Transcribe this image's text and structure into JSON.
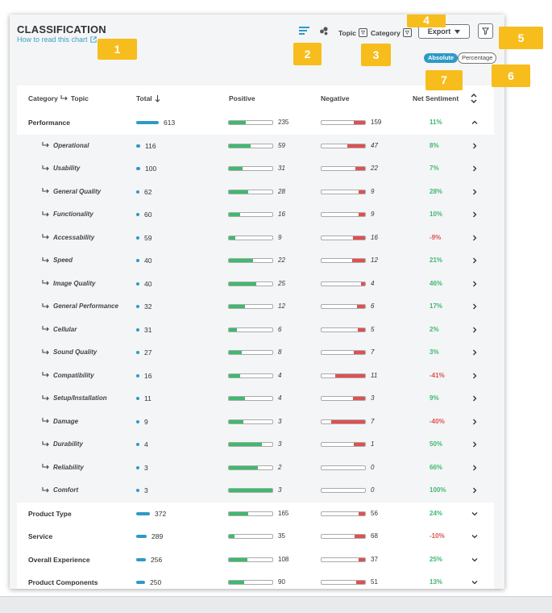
{
  "header": {
    "title": "CLASSIFICATION",
    "how_to": "How to read this chart",
    "topic_label": "Topic",
    "category_label": "Category",
    "export_label": "Export",
    "absolute_label": "Absolute",
    "percentage_label": "Percentage"
  },
  "table": {
    "columns": {
      "category": "Category",
      "topic": "Topic",
      "total": "Total",
      "positive": "Positive",
      "negative": "Negative",
      "net": "Net Sentiment"
    },
    "rows": [
      {
        "level": "category",
        "label": "Performance",
        "total": "613",
        "total_value": 613,
        "positive": "235",
        "positive_value": 235,
        "negative": "159",
        "negative_value": 159,
        "net": "11%",
        "net_color": "#3dba6e",
        "expanded": true
      },
      {
        "level": "topic",
        "label": "Operational",
        "total": "116",
        "total_value": 116,
        "positive": "59",
        "positive_value": 59,
        "negative": "47",
        "negative_value": 47,
        "net": "8%",
        "net_color": "#3dba6e"
      },
      {
        "level": "topic",
        "label": "Usability",
        "total": "100",
        "total_value": 100,
        "positive": "31",
        "positive_value": 31,
        "negative": "22",
        "negative_value": 22,
        "net": "7%",
        "net_color": "#3dba6e"
      },
      {
        "level": "topic",
        "label": "General Quality",
        "total": "62",
        "total_value": 62,
        "positive": "28",
        "positive_value": 28,
        "negative": "9",
        "negative_value": 9,
        "net": "28%",
        "net_color": "#3dba6e"
      },
      {
        "level": "topic",
        "label": "Functionality",
        "total": "60",
        "total_value": 60,
        "positive": "16",
        "positive_value": 16,
        "negative": "9",
        "negative_value": 9,
        "net": "10%",
        "net_color": "#3dba6e"
      },
      {
        "level": "topic",
        "label": "Accessability",
        "total": "59",
        "total_value": 59,
        "positive": "9",
        "positive_value": 9,
        "negative": "16",
        "negative_value": 16,
        "net": "-9%",
        "net_color": "#e05050"
      },
      {
        "level": "topic",
        "label": "Speed",
        "total": "40",
        "total_value": 40,
        "positive": "22",
        "positive_value": 22,
        "negative": "12",
        "negative_value": 12,
        "net": "21%",
        "net_color": "#3dba6e"
      },
      {
        "level": "topic",
        "label": "Image Quality",
        "total": "40",
        "total_value": 40,
        "positive": "25",
        "positive_value": 25,
        "negative": "4",
        "negative_value": 4,
        "net": "46%",
        "net_color": "#3dba6e"
      },
      {
        "level": "topic",
        "label": "General Performance",
        "total": "32",
        "total_value": 32,
        "positive": "12",
        "positive_value": 12,
        "negative": "6",
        "negative_value": 6,
        "net": "17%",
        "net_color": "#3dba6e"
      },
      {
        "level": "topic",
        "label": "Cellular",
        "total": "31",
        "total_value": 31,
        "positive": "6",
        "positive_value": 6,
        "negative": "5",
        "negative_value": 5,
        "net": "2%",
        "net_color": "#3dba6e"
      },
      {
        "level": "topic",
        "label": "Sound Quality",
        "total": "27",
        "total_value": 27,
        "positive": "8",
        "positive_value": 8,
        "negative": "7",
        "negative_value": 7,
        "net": "3%",
        "net_color": "#3dba6e"
      },
      {
        "level": "topic",
        "label": "Compatibility",
        "total": "16",
        "total_value": 16,
        "positive": "4",
        "positive_value": 4,
        "negative": "11",
        "negative_value": 11,
        "net": "-41%",
        "net_color": "#e05050"
      },
      {
        "level": "topic",
        "label": "Setup/Installation",
        "total": "11",
        "total_value": 11,
        "positive": "4",
        "positive_value": 4,
        "negative": "3",
        "negative_value": 3,
        "net": "9%",
        "net_color": "#3dba6e"
      },
      {
        "level": "topic",
        "label": "Damage",
        "total": "9",
        "total_value": 9,
        "positive": "3",
        "positive_value": 3,
        "negative": "7",
        "negative_value": 7,
        "net": "-40%",
        "net_color": "#e05050"
      },
      {
        "level": "topic",
        "label": "Durability",
        "total": "4",
        "total_value": 4,
        "positive": "3",
        "positive_value": 3,
        "negative": "1",
        "negative_value": 1,
        "net": "50%",
        "net_color": "#3dba6e"
      },
      {
        "level": "topic",
        "label": "Reliability",
        "total": "3",
        "total_value": 3,
        "positive": "2",
        "positive_value": 2,
        "negative": "0",
        "negative_value": 0,
        "net": "66%",
        "net_color": "#3dba6e"
      },
      {
        "level": "topic",
        "label": "Comfort",
        "total": "3",
        "total_value": 3,
        "positive": "3",
        "positive_value": 3,
        "negative": "0",
        "negative_value": 0,
        "net": "100%",
        "net_color": "#3dba6e"
      },
      {
        "level": "category",
        "label": "Product Type",
        "total": "372",
        "total_value": 372,
        "positive": "165",
        "positive_value": 165,
        "negative": "56",
        "negative_value": 56,
        "net": "24%",
        "net_color": "#3dba6e",
        "expanded": false
      },
      {
        "level": "category",
        "label": "Service",
        "total": "289",
        "total_value": 289,
        "positive": "35",
        "positive_value": 35,
        "negative": "68",
        "negative_value": 68,
        "net": "-10%",
        "net_color": "#e05050",
        "expanded": false
      },
      {
        "level": "category",
        "label": "Overall Experience",
        "total": "256",
        "total_value": 256,
        "positive": "108",
        "positive_value": 108,
        "negative": "37",
        "negative_value": 37,
        "net": "25%",
        "net_color": "#3dba6e",
        "expanded": false
      },
      {
        "level": "category",
        "label": "Product Components",
        "total": "250",
        "total_value": 250,
        "positive": "90",
        "positive_value": 90,
        "negative": "51",
        "negative_value": 51,
        "net": "13%",
        "net_color": "#3dba6e",
        "expanded": false
      }
    ]
  },
  "callouts": [
    "1",
    "2",
    "3",
    "4",
    "5",
    "6",
    "7"
  ],
  "colors": {
    "accent": "#2e9ac6",
    "positive": "#3dba6e",
    "negative": "#e05050",
    "callout": "#f7bd1c"
  }
}
